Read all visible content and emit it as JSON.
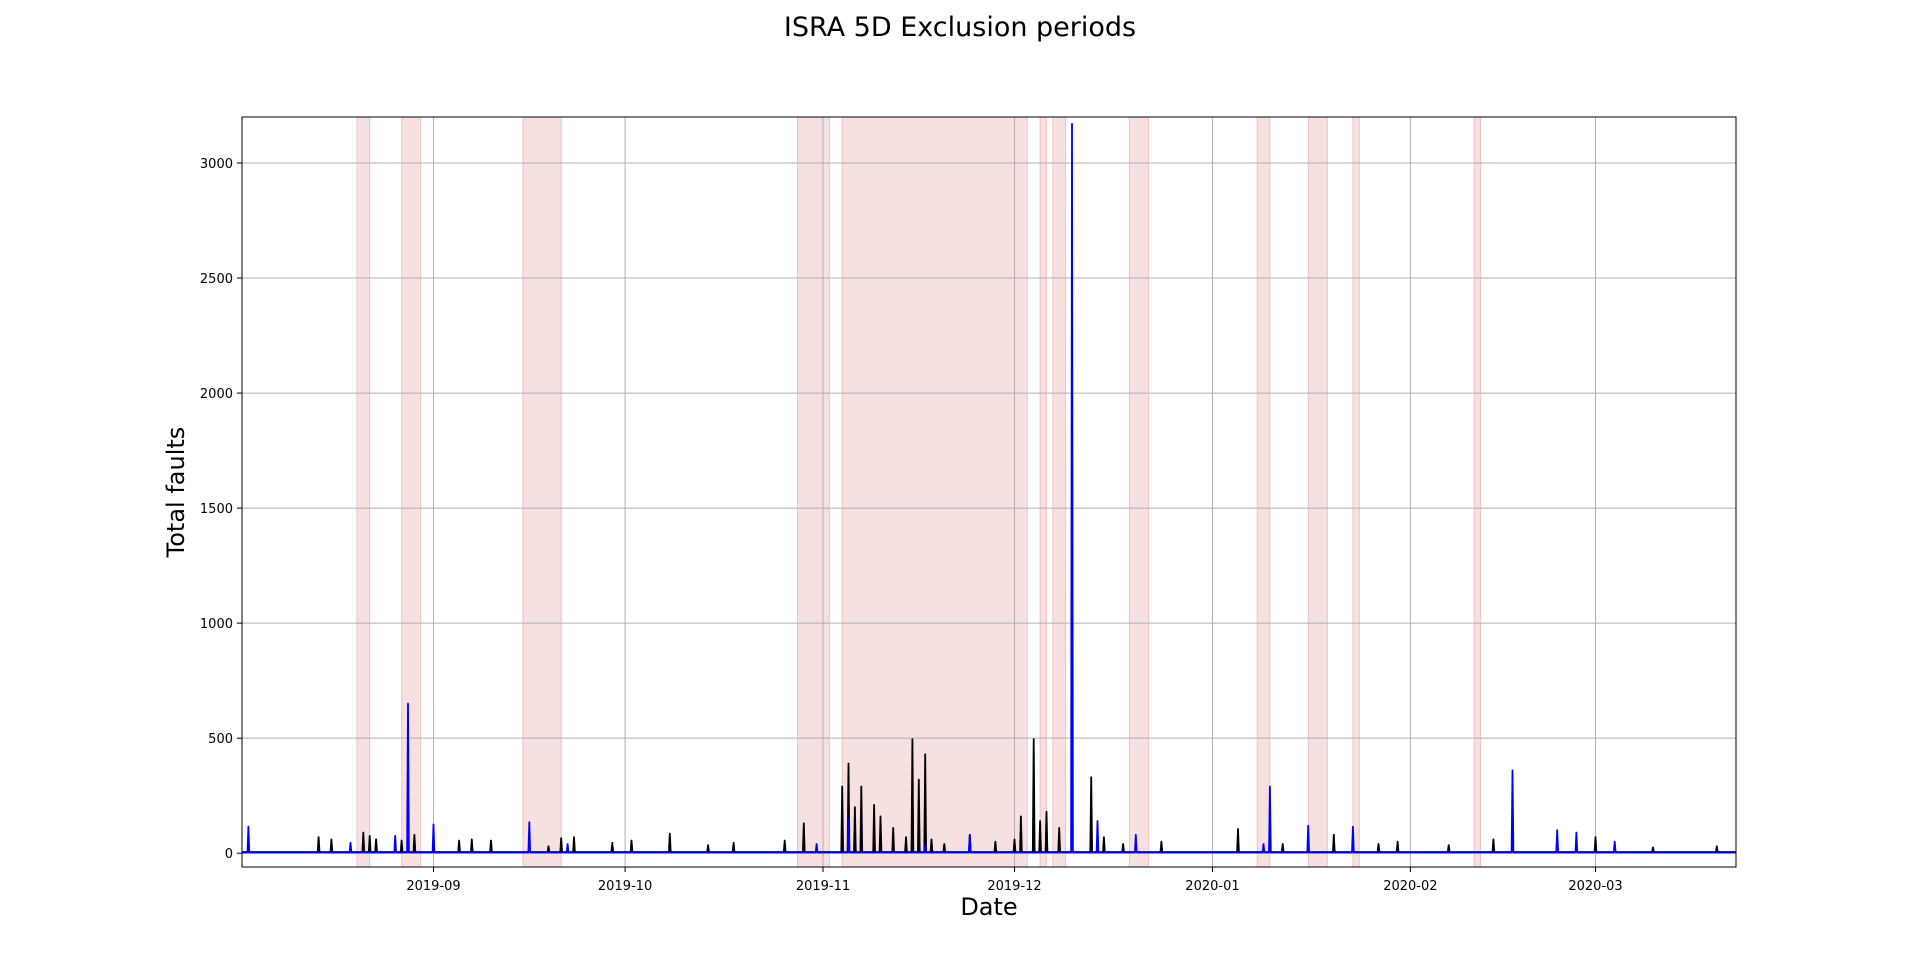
{
  "chart_data": {
    "type": "line",
    "title": "ISRA 5D Exclusion periods",
    "xlabel": "Date",
    "ylabel": "Total faults",
    "xlim": [
      "2019-08-02",
      "2020-03-23"
    ],
    "ylim": [
      -60,
      3200
    ],
    "grid": true,
    "x_ticks": [
      "2019-09",
      "2019-10",
      "2019-11",
      "2019-12",
      "2020-01",
      "2020-02",
      "2020-03"
    ],
    "y_ticks": [
      0,
      500,
      1000,
      1500,
      2000,
      2500,
      3000
    ],
    "exclusion_periods": [
      [
        "2019-08-20",
        "2019-08-22"
      ],
      [
        "2019-08-27",
        "2019-08-30"
      ],
      [
        "2019-09-15",
        "2019-09-21"
      ],
      [
        "2019-10-28",
        "2019-11-02"
      ],
      [
        "2019-11-04",
        "2019-12-03"
      ],
      [
        "2019-12-05",
        "2019-12-06"
      ],
      [
        "2019-12-07",
        "2019-12-09"
      ],
      [
        "2019-12-19",
        "2019-12-22"
      ],
      [
        "2020-01-08",
        "2020-01-10"
      ],
      [
        "2020-01-16",
        "2020-01-19"
      ],
      [
        "2020-01-23",
        "2020-01-24"
      ],
      [
        "2020-02-11",
        "2020-02-12"
      ]
    ],
    "colors": {
      "series_black": "#000000",
      "series_blue": "#0000ff",
      "exclusion": "#e8a6a6",
      "grid": "#b0b0b0"
    },
    "series": [
      {
        "color": "#000000",
        "baseline": 5,
        "points": [
          [
            "2019-08-14",
            70
          ],
          [
            "2019-08-16",
            60
          ],
          [
            "2019-08-21",
            90
          ],
          [
            "2019-08-22",
            75
          ],
          [
            "2019-08-23",
            60
          ],
          [
            "2019-08-27",
            55
          ],
          [
            "2019-08-29",
            80
          ],
          [
            "2019-09-05",
            55
          ],
          [
            "2019-09-07",
            60
          ],
          [
            "2019-09-10",
            55
          ],
          [
            "2019-09-16",
            30
          ],
          [
            "2019-09-19",
            30
          ],
          [
            "2019-09-21",
            65
          ],
          [
            "2019-09-23",
            70
          ],
          [
            "2019-09-29",
            45
          ],
          [
            "2019-10-02",
            55
          ],
          [
            "2019-10-08",
            85
          ],
          [
            "2019-10-14",
            35
          ],
          [
            "2019-10-18",
            45
          ],
          [
            "2019-10-26",
            55
          ],
          [
            "2019-10-29",
            130
          ],
          [
            "2019-11-04",
            290
          ],
          [
            "2019-11-05",
            390
          ],
          [
            "2019-11-06",
            200
          ],
          [
            "2019-11-07",
            290
          ],
          [
            "2019-11-09",
            210
          ],
          [
            "2019-11-10",
            160
          ],
          [
            "2019-11-12",
            110
          ],
          [
            "2019-11-14",
            70
          ],
          [
            "2019-11-15",
            495
          ],
          [
            "2019-11-16",
            320
          ],
          [
            "2019-11-17",
            430
          ],
          [
            "2019-11-18",
            60
          ],
          [
            "2019-11-20",
            40
          ],
          [
            "2019-11-24",
            80
          ],
          [
            "2019-11-28",
            50
          ],
          [
            "2019-12-01",
            60
          ],
          [
            "2019-12-02",
            160
          ],
          [
            "2019-12-04",
            495
          ],
          [
            "2019-12-05",
            140
          ],
          [
            "2019-12-06",
            180
          ],
          [
            "2019-12-08",
            110
          ],
          [
            "2019-12-13",
            330
          ],
          [
            "2019-12-15",
            70
          ],
          [
            "2019-12-18",
            40
          ],
          [
            "2019-12-24",
            50
          ],
          [
            "2020-01-05",
            105
          ],
          [
            "2020-01-12",
            40
          ],
          [
            "2020-01-20",
            80
          ],
          [
            "2020-01-27",
            40
          ],
          [
            "2020-01-30",
            50
          ],
          [
            "2020-02-07",
            35
          ],
          [
            "2020-02-14",
            60
          ],
          [
            "2020-02-24",
            65
          ],
          [
            "2020-03-01",
            70
          ],
          [
            "2020-03-10",
            25
          ],
          [
            "2020-03-20",
            30
          ]
        ]
      },
      {
        "color": "#0000ff",
        "baseline": 3,
        "points": [
          [
            "2019-08-03",
            115
          ],
          [
            "2019-08-19",
            45
          ],
          [
            "2019-08-26",
            75
          ],
          [
            "2019-08-28",
            650
          ],
          [
            "2019-09-01",
            125
          ],
          [
            "2019-09-16",
            135
          ],
          [
            "2019-09-22",
            40
          ],
          [
            "2019-10-31",
            40
          ],
          [
            "2019-11-05",
            150
          ],
          [
            "2019-11-17",
            35
          ],
          [
            "2019-11-24",
            80
          ],
          [
            "2019-12-10",
            3170
          ],
          [
            "2019-12-14",
            140
          ],
          [
            "2019-12-20",
            80
          ],
          [
            "2020-01-09",
            40
          ],
          [
            "2020-01-10",
            290
          ],
          [
            "2020-01-16",
            120
          ],
          [
            "2020-01-23",
            115
          ],
          [
            "2020-02-17",
            360
          ],
          [
            "2020-02-24",
            100
          ],
          [
            "2020-02-27",
            90
          ],
          [
            "2020-03-04",
            50
          ]
        ]
      }
    ]
  }
}
